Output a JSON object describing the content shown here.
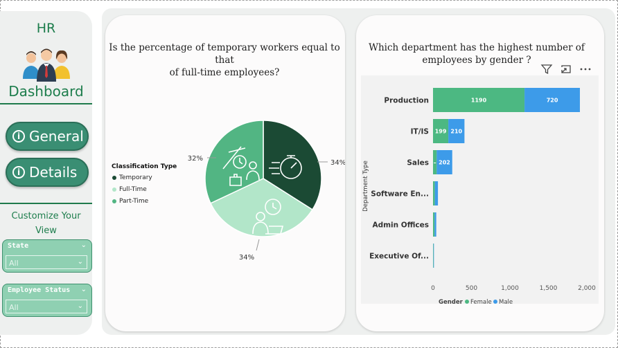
{
  "sidebar": {
    "title_top": "HR",
    "title_bottom": "Dashboard",
    "nav": [
      {
        "label": "General",
        "icon": "info-icon"
      },
      {
        "label": "Details",
        "icon": "info-icon"
      }
    ],
    "customize_line1": "Customize Your",
    "customize_line2": "View",
    "slicers": [
      {
        "label": "State",
        "value": "All"
      },
      {
        "label": "Employee Status",
        "value": "All"
      }
    ]
  },
  "pie_card": {
    "title_line1": "Is the percentage of temporary workers equal to that",
    "title_line2": "of full-time employees?",
    "legend_title": "Classification Type",
    "legend": [
      {
        "name": "Temporary",
        "color": "#1b4a34"
      },
      {
        "name": "Full-Time",
        "color": "#b2e6c9"
      },
      {
        "name": "Part-Time",
        "color": "#52b583"
      }
    ]
  },
  "bar_card": {
    "title_line1": "Which department has the highest number of",
    "title_line2": "employees by gender ?",
    "toolbar_icons": [
      "filter-icon",
      "focus-mode-icon",
      "more-options-icon"
    ],
    "legend_title": "Gender",
    "legend": [
      {
        "name": "Female",
        "color": "#4cb882"
      },
      {
        "name": "Male",
        "color": "#3d9be9"
      }
    ]
  },
  "chart_data": [
    {
      "type": "pie",
      "categories": [
        "Temporary",
        "Full-Time",
        "Part-Time"
      ],
      "values": [
        34,
        34,
        32
      ],
      "labels": [
        "34%",
        "34%",
        "32%"
      ],
      "colors": [
        "#1b4a34",
        "#b2e6c9",
        "#52b583"
      ],
      "title": "Is the percentage of temporary workers equal to that of full-time employees?",
      "legend_title": "Classification Type",
      "legend_position": "left"
    },
    {
      "type": "bar",
      "orientation": "horizontal",
      "stacked": true,
      "categories": [
        "Production",
        "IT/IS",
        "Sales",
        "Software En...",
        "Admin Offices",
        "Executive Of..."
      ],
      "series": [
        {
          "name": "Female",
          "color": "#4cb882",
          "values": [
            1190,
            199,
            48,
            24,
            20,
            6
          ],
          "labels": [
            "1190",
            "199",
            "–",
            "",
            "",
            ""
          ]
        },
        {
          "name": "Male",
          "color": "#3d9be9",
          "values": [
            720,
            210,
            202,
            40,
            22,
            6
          ],
          "labels": [
            "720",
            "210",
            "202",
            "",
            "",
            ""
          ]
        }
      ],
      "title": "Which department has the highest number of employees by gender ?",
      "ylabel": "Department Type",
      "xlim": [
        0,
        2000
      ],
      "xticks": [
        "0",
        "500",
        "1,000",
        "1,500",
        "2,000"
      ],
      "xtick_values": [
        0,
        500,
        1000,
        1500,
        2000
      ],
      "legend_title": "Gender",
      "legend_position": "bottom"
    }
  ]
}
